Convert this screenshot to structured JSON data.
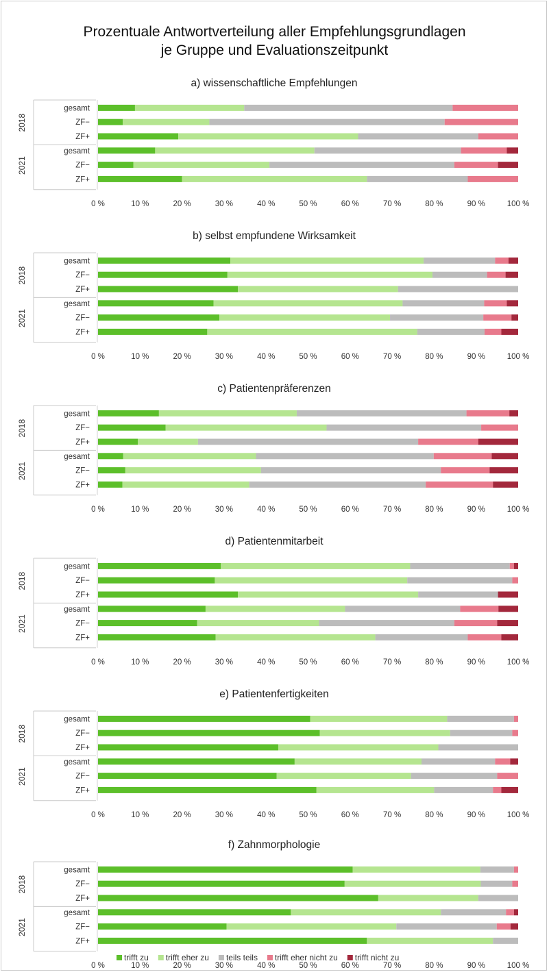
{
  "title_line1": "Prozentuale Antwortverteilung aller Empfehlungsgrundlagen",
  "title_line2": "je Gruppe und Evaluationszeitpunkt",
  "colors": {
    "trifft_zu": "#5cbf2a",
    "trifft_eher_zu": "#b5e590",
    "teils_teils": "#bcbcbc",
    "trifft_eher_nicht_zu": "#e87a8c",
    "trifft_nicht_zu": "#a3283c"
  },
  "legend": [
    "trifft zu",
    "trifft eher zu",
    "teils teils",
    "trifft eher nicht zu",
    "trifft nicht zu"
  ],
  "chart_data": [
    {
      "type": "bar",
      "stacked": true,
      "orientation": "horizontal",
      "title": "a) wissenschaftliche Empfehlungen",
      "groups": [
        "2018",
        "2021"
      ],
      "categories": [
        "gesamt",
        "ZF−",
        "ZF+",
        "gesamt",
        "ZF−",
        "ZF+"
      ],
      "xlim": [
        0,
        100
      ],
      "x_ticks": [
        "0 %",
        "10 %",
        "20 %",
        "30 %",
        "40 %",
        "50 %",
        "60 %",
        "70 %",
        "80 %",
        "90 %",
        "100 %"
      ],
      "series": [
        {
          "name": "trifft zu",
          "values": [
            8.8,
            5.9,
            19.1,
            13.6,
            8.4,
            20.0
          ]
        },
        {
          "name": "trifft eher zu",
          "values": [
            26.0,
            20.6,
            42.8,
            37.9,
            32.4,
            44.0
          ]
        },
        {
          "name": "teils teils",
          "values": [
            49.6,
            56.0,
            28.6,
            34.9,
            44.0,
            24.0
          ]
        },
        {
          "name": "trifft eher nicht zu",
          "values": [
            15.6,
            17.5,
            9.5,
            10.9,
            10.4,
            12.0
          ]
        },
        {
          "name": "trifft nicht zu",
          "values": [
            0,
            0,
            0,
            2.7,
            4.8,
            0
          ]
        }
      ]
    },
    {
      "type": "bar",
      "stacked": true,
      "orientation": "horizontal",
      "title": "b) selbst empfundene Wirksamkeit",
      "groups": [
        "2018",
        "2021"
      ],
      "categories": [
        "gesamt",
        "ZF−",
        "ZF+",
        "gesamt",
        "ZF−",
        "ZF+"
      ],
      "xlim": [
        0,
        100
      ],
      "x_ticks": [
        "0 %",
        "10 %",
        "20 %",
        "30 %",
        "40 %",
        "50 %",
        "60 %",
        "70 %",
        "80 %",
        "90 %",
        "100 %"
      ],
      "series": [
        {
          "name": "trifft zu",
          "values": [
            31.5,
            30.8,
            33.3,
            27.5,
            28.9,
            26.0
          ]
        },
        {
          "name": "trifft eher zu",
          "values": [
            46.0,
            48.8,
            38.1,
            45.0,
            40.6,
            50.0
          ]
        },
        {
          "name": "teils teils",
          "values": [
            17.0,
            13.0,
            28.6,
            19.4,
            22.2,
            16.0
          ]
        },
        {
          "name": "trifft eher nicht zu",
          "values": [
            3.2,
            4.4,
            0,
            5.4,
            6.7,
            4.0
          ]
        },
        {
          "name": "trifft nicht zu",
          "values": [
            2.3,
            3.0,
            0,
            2.7,
            1.6,
            4.0
          ]
        }
      ]
    },
    {
      "type": "bar",
      "stacked": true,
      "orientation": "horizontal",
      "title": "c) Patientenpräferenzen",
      "groups": [
        "2018",
        "2021"
      ],
      "categories": [
        "gesamt",
        "ZF−",
        "ZF+",
        "gesamt",
        "ZF−",
        "ZF+"
      ],
      "xlim": [
        0,
        100
      ],
      "x_ticks": [
        "0 %",
        "10 %",
        "20 %",
        "30 %",
        "40 %",
        "50 %",
        "60 %",
        "70 %",
        "80 %",
        "90 %",
        "100 %"
      ],
      "series": [
        {
          "name": "trifft zu",
          "values": [
            14.5,
            16.1,
            9.5,
            6.0,
            6.5,
            5.8
          ]
        },
        {
          "name": "trifft eher zu",
          "values": [
            32.8,
            38.3,
            14.3,
            31.6,
            32.3,
            30.2
          ]
        },
        {
          "name": "teils teils",
          "values": [
            40.4,
            36.8,
            52.4,
            42.3,
            42.8,
            42.0
          ]
        },
        {
          "name": "trifft eher nicht zu",
          "values": [
            10.2,
            8.8,
            14.3,
            13.8,
            11.6,
            16.0
          ]
        },
        {
          "name": "trifft nicht zu",
          "values": [
            2.1,
            0,
            9.5,
            6.3,
            6.8,
            6.0
          ]
        }
      ]
    },
    {
      "type": "bar",
      "stacked": true,
      "orientation": "horizontal",
      "title": "d) Patientenmitarbeit",
      "groups": [
        "2018",
        "2021"
      ],
      "categories": [
        "gesamt",
        "ZF−",
        "ZF+",
        "gesamt",
        "ZF−",
        "ZF+"
      ],
      "xlim": [
        0,
        100
      ],
      "x_ticks": [
        "0 %",
        "10 %",
        "20 %",
        "30 %",
        "40 %",
        "50 %",
        "60 %",
        "70 %",
        "80 %",
        "90 %",
        "100 %"
      ],
      "series": [
        {
          "name": "trifft zu",
          "values": [
            29.2,
            27.8,
            33.3,
            25.6,
            23.6,
            28.0
          ]
        },
        {
          "name": "trifft eher zu",
          "values": [
            45.1,
            45.8,
            42.9,
            33.2,
            29.0,
            38.0
          ]
        },
        {
          "name": "teils teils",
          "values": [
            23.7,
            25.0,
            19.0,
            27.4,
            32.2,
            22.0
          ]
        },
        {
          "name": "trifft eher nicht zu",
          "values": [
            1.0,
            1.4,
            0,
            9.1,
            10.2,
            8.0
          ]
        },
        {
          "name": "trifft nicht zu",
          "values": [
            1.0,
            0,
            4.8,
            4.7,
            5.0,
            4.0
          ]
        }
      ]
    },
    {
      "type": "bar",
      "stacked": true,
      "orientation": "horizontal",
      "title": "e) Patientenfertigkeiten",
      "groups": [
        "2018",
        "2021"
      ],
      "categories": [
        "gesamt",
        "ZF−",
        "ZF+",
        "gesamt",
        "ZF−",
        "ZF+"
      ],
      "xlim": [
        0,
        100
      ],
      "x_ticks": [
        "0 %",
        "10 %",
        "20 %",
        "30 %",
        "40 %",
        "50 %",
        "60 %",
        "70 %",
        "80 %",
        "90 %",
        "100 %"
      ],
      "series": [
        {
          "name": "trifft zu",
          "values": [
            50.5,
            52.8,
            42.9,
            46.8,
            42.5,
            52.0
          ]
        },
        {
          "name": "trifft eher zu",
          "values": [
            32.6,
            31.0,
            38.1,
            30.2,
            32.0,
            28.0
          ]
        },
        {
          "name": "teils teils",
          "values": [
            15.9,
            14.8,
            19.0,
            17.5,
            20.5,
            14.0
          ]
        },
        {
          "name": "trifft eher nicht zu",
          "values": [
            1.0,
            1.4,
            0,
            3.6,
            5.0,
            2.0
          ]
        },
        {
          "name": "trifft nicht zu",
          "values": [
            0,
            0,
            0,
            1.9,
            0,
            4.0
          ]
        }
      ]
    },
    {
      "type": "bar",
      "stacked": true,
      "orientation": "horizontal",
      "title": "f) Zahnmorphologie",
      "groups": [
        "2018",
        "2021"
      ],
      "categories": [
        "gesamt",
        "ZF−",
        "ZF+",
        "gesamt",
        "ZF−",
        "ZF+"
      ],
      "xlim": [
        0,
        100
      ],
      "x_ticks": [
        "0 %",
        "10 %",
        "20 %",
        "30 %",
        "40 %",
        "50 %",
        "60 %",
        "70 %",
        "80 %",
        "90 %",
        "100 %"
      ],
      "series": [
        {
          "name": "trifft zu",
          "values": [
            60.6,
            58.7,
            66.7,
            45.9,
            30.6,
            64.0
          ]
        },
        {
          "name": "trifft eher zu",
          "values": [
            30.4,
            32.4,
            23.8,
            35.7,
            40.4,
            30.0
          ]
        },
        {
          "name": "teils teils",
          "values": [
            8.0,
            7.5,
            9.5,
            15.5,
            23.9,
            6.0
          ]
        },
        {
          "name": "trifft eher nicht zu",
          "values": [
            1.0,
            1.4,
            0,
            1.9,
            3.3,
            0
          ]
        },
        {
          "name": "trifft nicht zu",
          "values": [
            0,
            0,
            0,
            1.0,
            1.8,
            0
          ]
        }
      ]
    }
  ]
}
